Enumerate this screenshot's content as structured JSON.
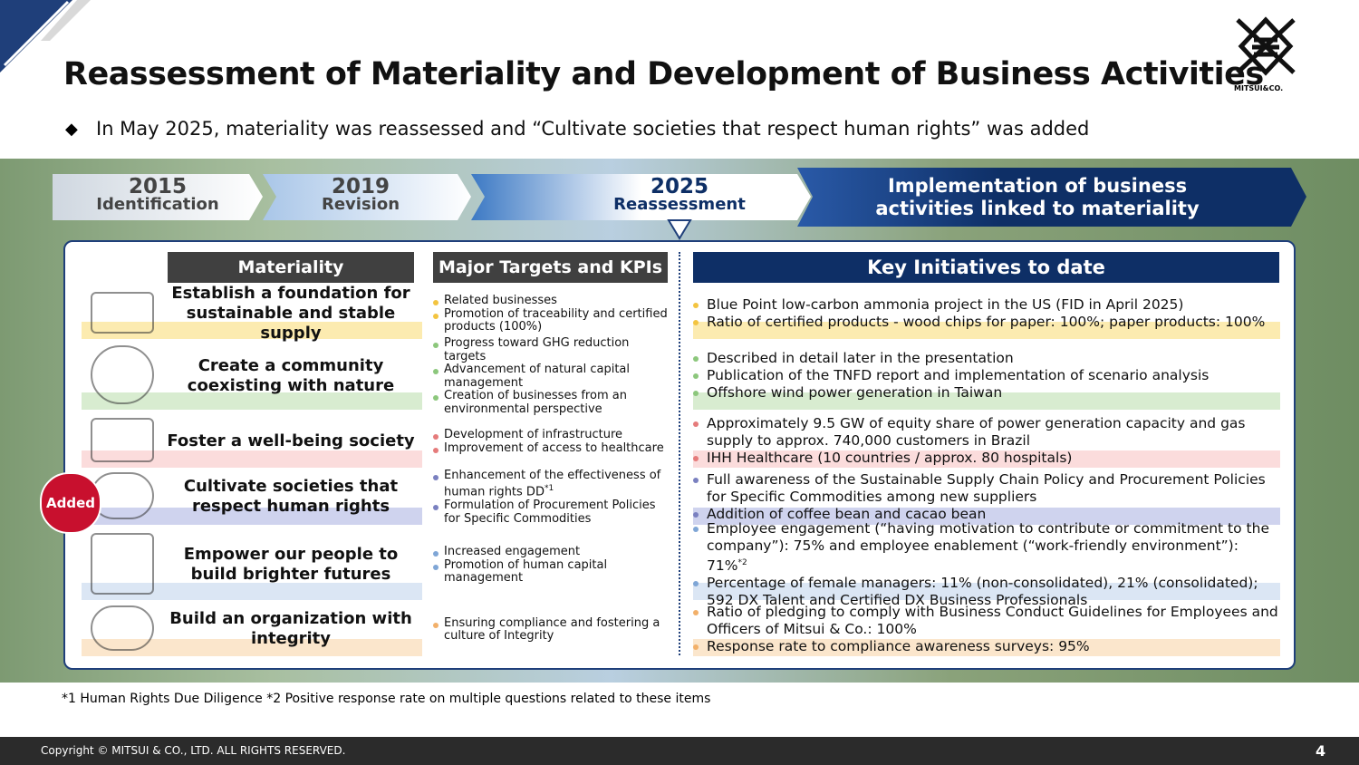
{
  "header": {
    "title": "Reassessment of Materiality and Development of Business Activities",
    "subtitle": "In May 2025, materiality was reassessed and “Cultivate societies that respect human rights” was added",
    "logo": "MITSUI&CO."
  },
  "timeline": [
    {
      "year": "2015",
      "label": "Identification"
    },
    {
      "year": "2019",
      "label": "Revision"
    },
    {
      "year": "2025",
      "label": "Reassessment"
    },
    {
      "label": "Implementation of business activities linked to materiality"
    }
  ],
  "table": {
    "headers": [
      "Materiality",
      "Major Targets and KPIs",
      "Key Initiatives to date"
    ],
    "badge": "Added",
    "rows": [
      {
        "materiality": "Establish a foundation for sustainable and stable supply",
        "kpis": [
          {
            "text": "Related businesses"
          },
          {
            "text": "Promotion of traceability and certified products (100%)"
          }
        ],
        "initiatives": [
          {
            "text": "Blue Point low-carbon ammonia project in the US (FID in April 2025)"
          },
          {
            "text": "Ratio of certified products -  wood chips for paper: 100%; paper products: 100%"
          }
        ]
      },
      {
        "materiality": "Create a community coexisting with nature",
        "kpis": [
          {
            "text": "Progress toward GHG reduction targets"
          },
          {
            "text": "Advancement of natural capital management"
          },
          {
            "text": "Creation of businesses from an environmental perspective"
          }
        ],
        "initiatives": [
          {
            "text": "Described in detail later in the presentation"
          },
          {
            "text": "Publication of the TNFD report and implementation of scenario analysis"
          },
          {
            "text": "Offshore wind power generation in Taiwan"
          }
        ]
      },
      {
        "materiality": "Foster a well-being society",
        "kpis": [
          {
            "text": "Development of infrastructure"
          },
          {
            "text": "Improvement of access to healthcare"
          }
        ],
        "initiatives": [
          {
            "text": "Approximately 9.5 GW of equity share of power generation capacity and gas supply to approx. 740,000 customers in Brazil"
          },
          {
            "text": "IHH Healthcare (10 countries / approx. 80 hospitals)"
          }
        ]
      },
      {
        "materiality": "Cultivate societies that respect human rights",
        "kpis": [
          {
            "text": "Enhancement of the effectiveness of human rights DD",
            "sup": "*1"
          },
          {
            "text": "Formulation of Procurement Policies for Specific Commodities"
          }
        ],
        "initiatives": [
          {
            "text": "Full awareness of the Sustainable Supply Chain Policy and Procurement Policies for Specific Commodities among new suppliers"
          },
          {
            "text": "Addition of coffee bean and cacao bean"
          }
        ]
      },
      {
        "materiality": "Empower our people to build brighter futures",
        "kpis": [
          {
            "text": "Increased engagement"
          },
          {
            "text": "Promotion of human capital management"
          }
        ],
        "initiatives": [
          {
            "text": "Employee engagement (“having motivation to contribute or commitment to the company”): 75% and employee enablement (“work-friendly environment”): 71%",
            "sup": "*2"
          },
          {
            "text": "Percentage of female managers: 11% (non-consolidated), 21% (consolidated); 592 DX Talent and Certified DX Business Professionals"
          }
        ]
      },
      {
        "materiality": "Build an organization with integrity",
        "kpis": [
          {
            "text": "Ensuring compliance and fostering a culture of Integrity"
          }
        ],
        "initiatives": [
          {
            "text": "Ratio of pledging to comply with Business Conduct Guidelines for Employees and Officers of Mitsui & Co.: 100%"
          },
          {
            "text": "Response rate to compliance awareness surveys: 95%"
          }
        ]
      }
    ]
  },
  "footnote": "*1 Human Rights Due Diligence  *2 Positive response rate on multiple questions related to these items",
  "footer": {
    "copyright": "Copyright © MITSUI & CO., LTD. ALL RIGHTS RESERVED.",
    "page": "4"
  }
}
